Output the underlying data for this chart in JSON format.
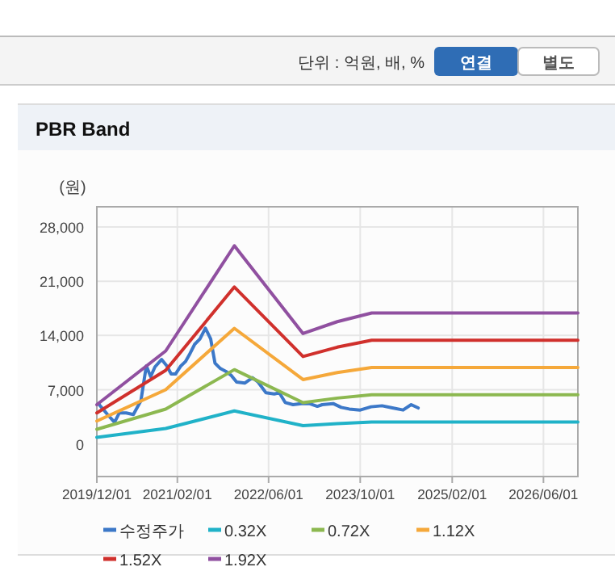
{
  "chart_data": {
    "type": "line",
    "title": "PBR Band",
    "ylabel": "(원)",
    "annotations": [
      "단위 : 억원, 배, %",
      "연결",
      "별도"
    ],
    "xlim": [
      "2019-12",
      "2026-12"
    ],
    "xticks": [
      {
        "value": "2019-12-01",
        "label": "2019/12/01"
      },
      {
        "value": "2021-02-01",
        "label": "2021/02/01"
      },
      {
        "value": "2022-06-01",
        "label": "2022/06/01"
      },
      {
        "value": "2023-10-01",
        "label": "2023/10/01"
      },
      {
        "value": "2025-02-01",
        "label": "2025/02/01"
      },
      {
        "value": "2026-06-01",
        "label": "2026/06/01"
      }
    ],
    "ylim": [
      -4200,
      30600
    ],
    "yticks": [
      {
        "value": 0,
        "label": "0"
      },
      {
        "value": 7000,
        "label": "7,000"
      },
      {
        "value": 14000,
        "label": "14,000"
      },
      {
        "value": 21000,
        "label": "21,000"
      },
      {
        "value": 28000,
        "label": "28,000"
      }
    ],
    "grid": true,
    "legend": "bottom",
    "marker": "none",
    "line_style": "solid",
    "series": [
      {
        "name": "수정주가",
        "color": "#3c78c8",
        "x": [
          "2019-12-09",
          "2020-01-27",
          "2020-03-04",
          "2020-03-29",
          "2020-05-05",
          "2020-06-12",
          "2020-07-22",
          "2020-08-20",
          "2020-09-12",
          "2020-10-05",
          "2020-11-09",
          "2020-12-07",
          "2020-12-30",
          "2021-01-22",
          "2021-02-20",
          "2021-03-16",
          "2021-04-05",
          "2021-05-04",
          "2021-06-01",
          "2021-06-30",
          "2021-07-28",
          "2021-08-20",
          "2021-09-18",
          "2021-10-16",
          "2021-11-15",
          "2021-12-13",
          "2022-01-25",
          "2022-03-07",
          "2022-04-06",
          "2022-05-18",
          "2022-07-01",
          "2022-07-28",
          "2022-08-28",
          "2022-10-09",
          "2022-11-21",
          "2023-01-03",
          "2023-02-15",
          "2023-03-13",
          "2023-05-10",
          "2023-06-22",
          "2023-08-04",
          "2023-10-01",
          "2023-11-28",
          "2024-01-25",
          "2024-03-20",
          "2024-05-16",
          "2024-06-28",
          "2024-08-04"
        ],
        "values": [
          5200,
          3800,
          2800,
          4000,
          4000,
          3800,
          5560,
          10080,
          8690,
          9940,
          10900,
          10080,
          9030,
          9030,
          10080,
          10630,
          11470,
          12860,
          13550,
          14940,
          13550,
          10430,
          9730,
          9380,
          8830,
          7990,
          7850,
          8550,
          7990,
          6600,
          6460,
          6600,
          5350,
          5070,
          5210,
          5210,
          4860,
          5070,
          5210,
          4720,
          4510,
          4380,
          4800,
          4930,
          4650,
          4380,
          5070,
          4650
        ]
      },
      {
        "name": "0.32X",
        "color": "#20b2c8",
        "x": [
          "2019-12",
          "2020-12",
          "2021-12",
          "2022-12",
          "2023-06",
          "2023-12",
          "2026-12"
        ],
        "values": [
          850,
          2000,
          4260,
          2370,
          2630,
          2820,
          2820
        ]
      },
      {
        "name": "0.72X",
        "color": "#8cb850",
        "x": [
          "2019-12",
          "2020-12",
          "2021-12",
          "2022-12",
          "2023-06",
          "2023-12",
          "2026-12"
        ],
        "values": [
          1900,
          4500,
          9590,
          5340,
          5920,
          6340,
          6340
        ]
      },
      {
        "name": "1.12X",
        "color": "#f5a83a",
        "x": [
          "2019-12",
          "2020-12",
          "2021-12",
          "2022-12",
          "2023-06",
          "2023-12",
          "2026-12"
        ],
        "values": [
          2960,
          7000,
          14920,
          8310,
          9210,
          9860,
          9860
        ]
      },
      {
        "name": "1.52X",
        "color": "#d0302c",
        "x": [
          "2019-12",
          "2020-12",
          "2021-12",
          "2022-12",
          "2023-06",
          "2023-12",
          "2026-12"
        ],
        "values": [
          4010,
          9500,
          20250,
          11280,
          12490,
          13380,
          13380
        ]
      },
      {
        "name": "1.92X",
        "color": "#9050a0",
        "x": [
          "2019-12",
          "2020-12",
          "2021-12",
          "2022-12",
          "2023-06",
          "2023-12",
          "2026-12"
        ],
        "values": [
          5070,
          12000,
          25570,
          14250,
          15780,
          16900,
          16900
        ]
      }
    ]
  }
}
